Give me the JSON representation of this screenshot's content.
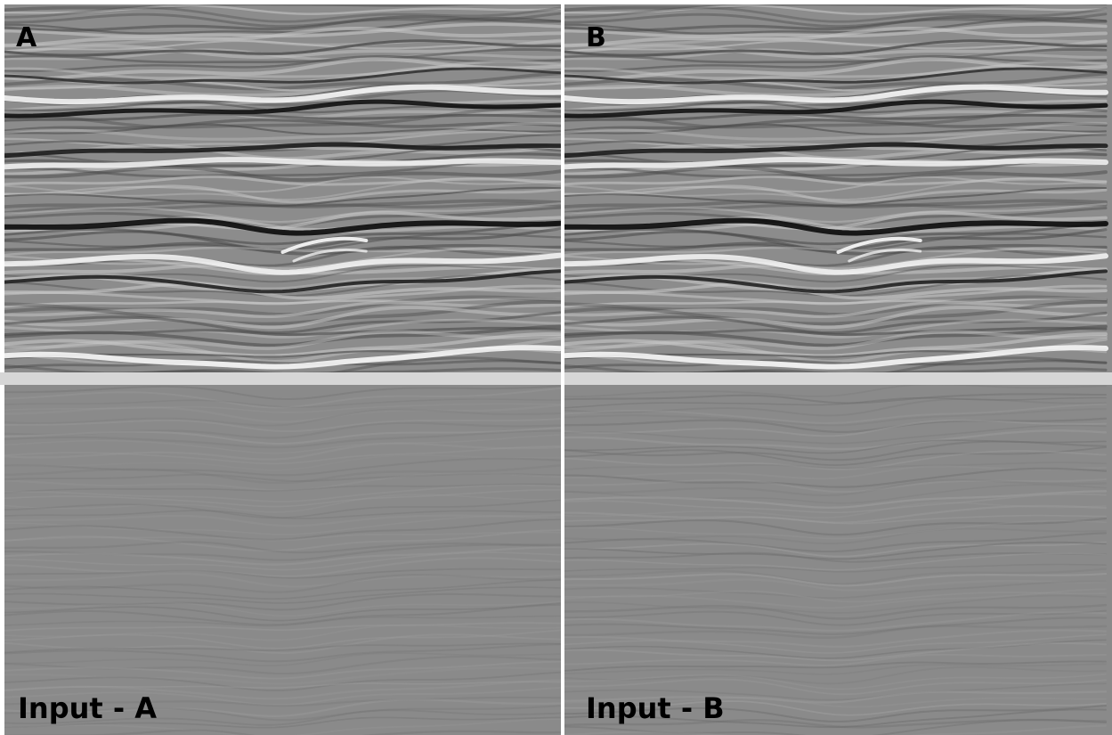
{
  "panels": [
    {
      "label": "A"
    },
    {
      "label": "B"
    },
    {
      "label": "Input - A"
    },
    {
      "label": "Input - B"
    }
  ]
}
